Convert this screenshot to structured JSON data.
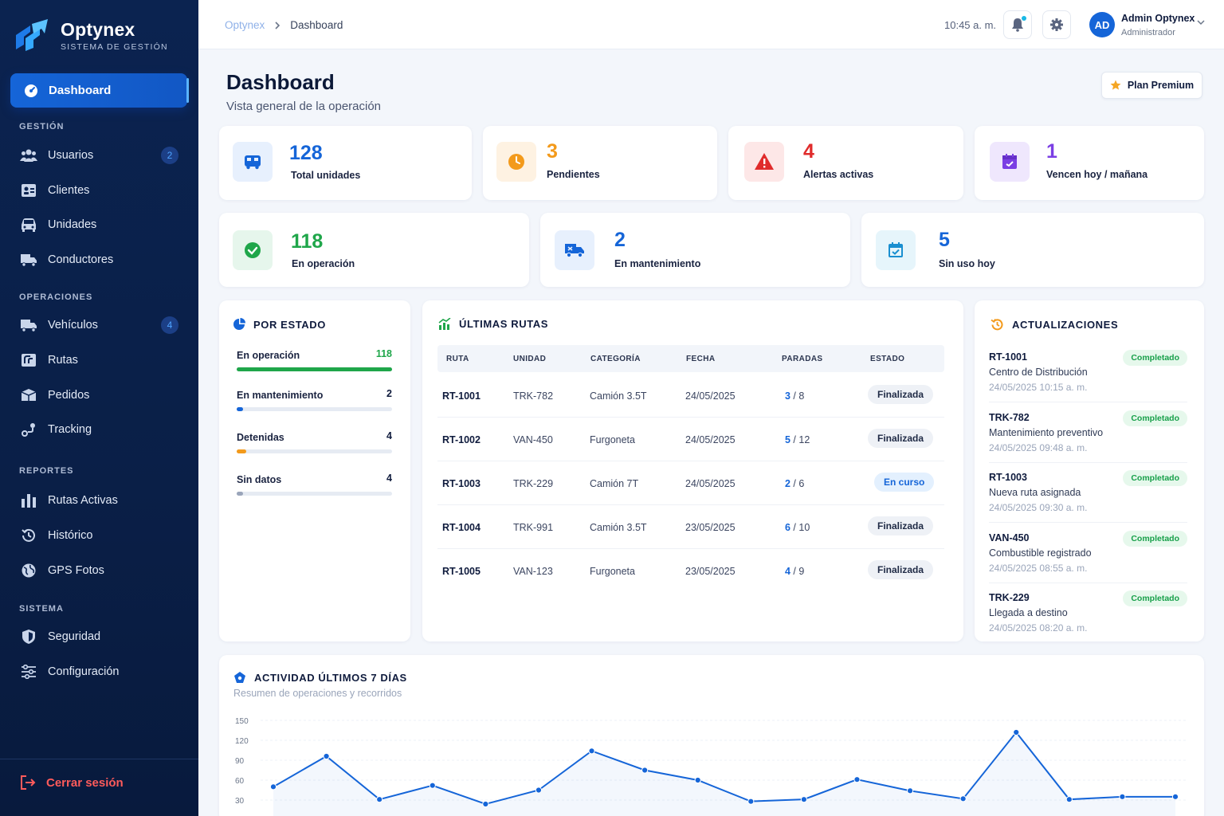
{
  "brand": {
    "name": "Optynex",
    "subtitle": "SISTEMA DE GESTIÓN"
  },
  "sidebar": {
    "active": {
      "label": "Dashboard",
      "icon": "dashboard-icon"
    },
    "sections": [
      {
        "title": "GESTIÓN",
        "items": [
          {
            "label": "Usuarios",
            "icon": "users-icon",
            "badge": "2"
          },
          {
            "label": "Clientes",
            "icon": "id-card-icon"
          },
          {
            "label": "Unidades",
            "icon": "car-icon"
          },
          {
            "label": "Conductores",
            "icon": "truck-driver-icon"
          }
        ]
      },
      {
        "title": "OPERACIONES",
        "items": [
          {
            "label": "Vehículos",
            "icon": "truck-icon",
            "badge": "4"
          },
          {
            "label": "Rutas",
            "icon": "map-icon"
          },
          {
            "label": "Pedidos",
            "icon": "box-icon"
          },
          {
            "label": "Tracking",
            "icon": "route-icon"
          }
        ]
      },
      {
        "title": "REPORTES",
        "items": [
          {
            "label": "Rutas Activas",
            "icon": "bar-chart-icon"
          },
          {
            "label": "Histórico",
            "icon": "history-icon"
          },
          {
            "label": "GPS Fotos",
            "icon": "globe-icon"
          }
        ]
      },
      {
        "title": "SISTEMA",
        "items": [
          {
            "label": "Seguridad",
            "icon": "shield-icon"
          },
          {
            "label": "Configuración",
            "icon": "sliders-icon"
          }
        ]
      }
    ],
    "logout": "Cerrar sesión"
  },
  "topbar": {
    "breadcrumb": [
      "Optynex",
      "Dashboard"
    ],
    "time": "10:45 a. m.",
    "user": {
      "initials": "AD",
      "name": "Admin Optynex",
      "role": "Administrador"
    }
  },
  "header": {
    "title": "Dashboard",
    "subtitle": "Vista general de la operación",
    "plan_button": "Plan Premium"
  },
  "stats_row1": [
    {
      "value": "128",
      "label": "Total unidades",
      "color": "#1565d8",
      "icon": "bus-icon"
    },
    {
      "value": "3",
      "label": "Pendientes",
      "color": "#f39a1b",
      "icon": "clock-icon"
    },
    {
      "value": "4",
      "label": "Alertas activas",
      "color": "#e02b2b",
      "icon": "alert-icon"
    },
    {
      "value": "1",
      "label": "Vencen hoy / mañana",
      "color": "#7b3fe4",
      "icon": "calendar-icon"
    }
  ],
  "stats_row2": [
    {
      "value": "118",
      "label": "En operación",
      "color": "#1fa64a",
      "icon": "check-circle-icon"
    },
    {
      "value": "2",
      "label": "En mantenimiento",
      "color": "#1565d8",
      "icon": "truck-repair-icon"
    },
    {
      "value": "5",
      "label": "Sin uso hoy",
      "color": "#1565d8",
      "icon": "calendar-check-icon"
    }
  ],
  "por_estado": {
    "title": "POR ESTADO",
    "rows": [
      {
        "label": "En operación",
        "value": "118",
        "fraction": 1.0,
        "color": "#1fa64a",
        "value_color": "#1fa64a"
      },
      {
        "label": "En mantenimiento",
        "value": "2",
        "fraction": 0.04,
        "color": "#1565d8",
        "value_color": "#0f1b3d"
      },
      {
        "label": "Detenidas",
        "value": "4",
        "fraction": 0.06,
        "color": "#f39a1b",
        "value_color": "#0f1b3d"
      },
      {
        "label": "Sin datos",
        "value": "4",
        "fraction": 0.03,
        "color": "#9aa5ba",
        "value_color": "#0f1b3d"
      }
    ]
  },
  "rutas": {
    "title": "ÚLTIMAS RUTAS",
    "columns": [
      "RUTA",
      "UNIDAD",
      "CATEGORÍA",
      "FECHA",
      "PARADAS",
      "ESTADO"
    ],
    "rows": [
      {
        "ruta": "RT-1001",
        "unidad": "TRK-782",
        "categoria": "Camión 3.5T",
        "fecha": "24/05/2025",
        "paradas_done": "3",
        "paradas_total": "8",
        "estado": "Finalizada"
      },
      {
        "ruta": "RT-1002",
        "unidad": "VAN-450",
        "categoria": "Furgoneta",
        "fecha": "24/05/2025",
        "paradas_done": "5",
        "paradas_total": "12",
        "estado": "Finalizada"
      },
      {
        "ruta": "RT-1003",
        "unidad": "TRK-229",
        "categoria": "Camión 7T",
        "fecha": "24/05/2025",
        "paradas_done": "2",
        "paradas_total": "6",
        "estado": "En curso"
      },
      {
        "ruta": "RT-1004",
        "unidad": "TRK-991",
        "categoria": "Camión 3.5T",
        "fecha": "23/05/2025",
        "paradas_done": "6",
        "paradas_total": "10",
        "estado": "Finalizada"
      },
      {
        "ruta": "RT-1005",
        "unidad": "VAN-123",
        "categoria": "Furgoneta",
        "fecha": "23/05/2025",
        "paradas_done": "4",
        "paradas_total": "9",
        "estado": "Finalizada"
      }
    ]
  },
  "actualizaciones": {
    "title": "ACTUALIZACIONES",
    "items": [
      {
        "code": "RT-1001",
        "desc": "Centro de Distribución",
        "ts": "24/05/2025 10:15 a. m.",
        "status": "Completado"
      },
      {
        "code": "TRK-782",
        "desc": "Mantenimiento preventivo",
        "ts": "24/05/2025 09:48 a. m.",
        "status": "Completado"
      },
      {
        "code": "RT-1003",
        "desc": "Nueva ruta asignada",
        "ts": "24/05/2025 09:30 a. m.",
        "status": "Completado"
      },
      {
        "code": "VAN-450",
        "desc": "Combustible registrado",
        "ts": "24/05/2025 08:55 a. m.",
        "status": "Completado"
      },
      {
        "code": "TRK-229",
        "desc": "Llegada a destino",
        "ts": "24/05/2025 08:20 a. m.",
        "status": "Completado"
      }
    ]
  },
  "actividad": {
    "title": "ACTIVIDAD ÚLTIMOS 7 DÍAS",
    "subtitle": "Resumen de operaciones y recorridos"
  },
  "chart_data": {
    "type": "line",
    "title": "ACTIVIDAD ÚLTIMOS 7 DÍAS",
    "xlabel": "",
    "ylabel": "",
    "yticks": [
      "150",
      "120",
      "90",
      "60",
      "30"
    ],
    "ylim": [
      30,
      150
    ],
    "grid": true,
    "color": "#1565d8",
    "x": [
      1,
      2,
      3,
      4,
      5,
      6,
      7,
      8,
      9,
      10,
      11,
      12,
      13,
      14,
      15,
      16,
      17,
      18
    ],
    "values": [
      50,
      96,
      31,
      52,
      24,
      45,
      104,
      75,
      60,
      28,
      31,
      61,
      44,
      32,
      132,
      31,
      35,
      35
    ]
  }
}
